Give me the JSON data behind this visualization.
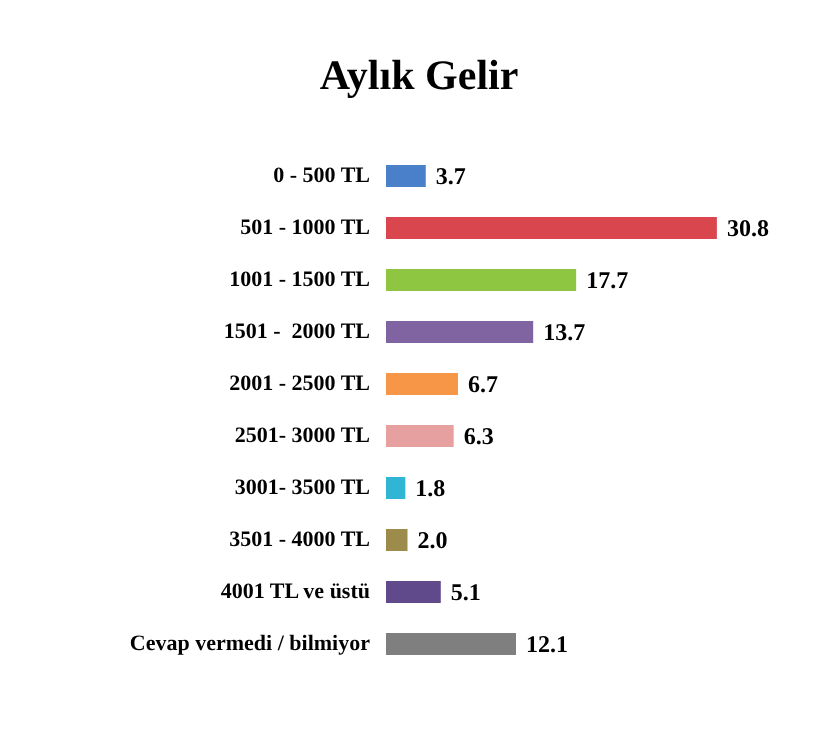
{
  "chart_data": {
    "type": "bar",
    "orientation": "horizontal",
    "title": "Aylık Gelir",
    "categories": [
      "0 - 500 TL",
      "501 - 1000 TL",
      "1001 - 1500 TL",
      "1501 -  2000 TL",
      "2001 - 2500 TL",
      "2501- 3000 TL",
      "3001- 3500 TL",
      "3501 - 4000 TL",
      "4001 TL ve üstü",
      "Cevap vermedi / bilmiyor"
    ],
    "values": [
      3.7,
      30.8,
      17.7,
      13.7,
      6.7,
      6.3,
      1.8,
      2.0,
      5.1,
      12.1
    ],
    "colors": [
      "#4a7fc9",
      "#d9464e",
      "#8fc641",
      "#8064a2",
      "#f79646",
      "#e6a0a0",
      "#31b5d4",
      "#9c8b4a",
      "#604a8c",
      "#7f7f7f"
    ],
    "value_labels": [
      "3.7",
      "30.8",
      "17.7",
      "13.7",
      "6.7",
      "6.3",
      "1.8",
      "2.0",
      "5.1",
      "12.1"
    ]
  }
}
